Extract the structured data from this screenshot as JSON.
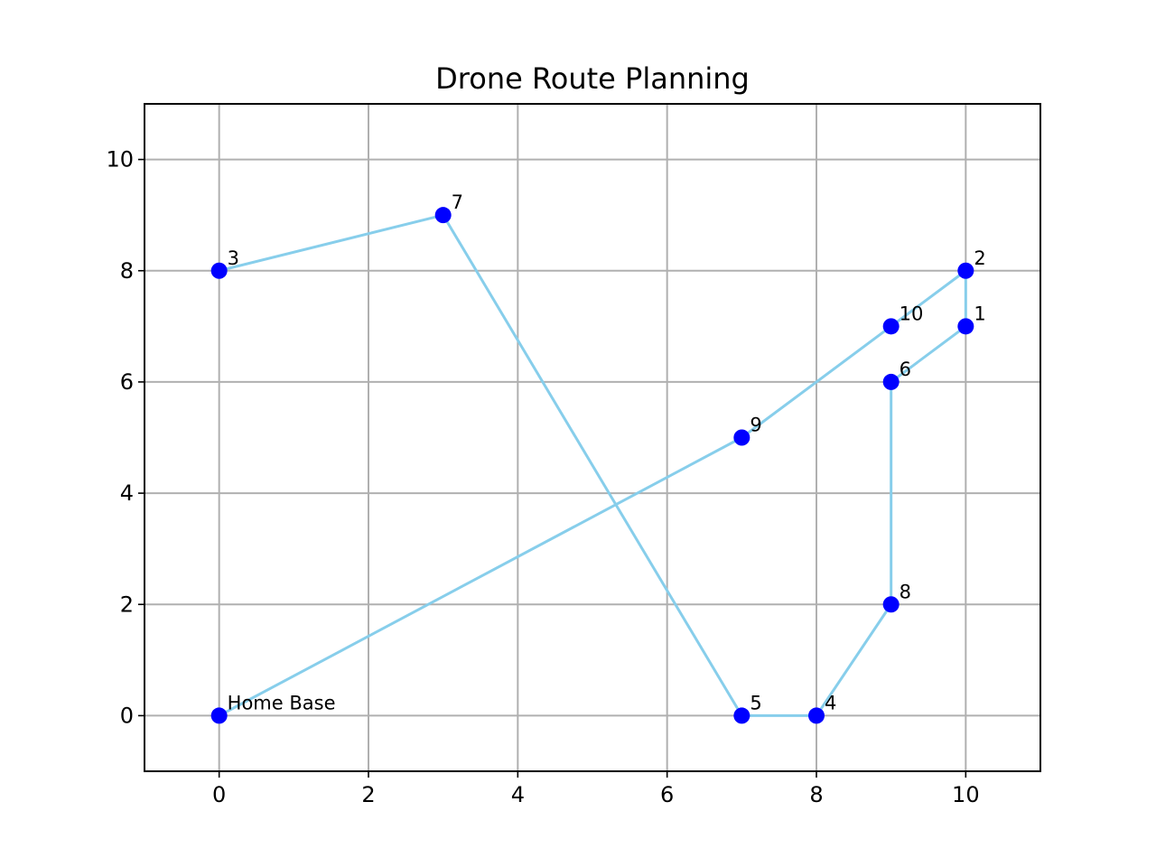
{
  "chart_data": {
    "type": "scatter",
    "title": "Drone Route Planning",
    "xlabel": "",
    "ylabel": "",
    "xlim": [
      -1,
      11
    ],
    "ylim": [
      -1,
      11
    ],
    "grid": true,
    "x_ticks": [
      0,
      2,
      4,
      6,
      8,
      10
    ],
    "y_ticks": [
      0,
      2,
      4,
      6,
      8,
      10
    ],
    "colors": {
      "route_line": "#87ceeb",
      "points": "#0000ff"
    },
    "points": [
      {
        "label": "Home Base",
        "x": 0,
        "y": 0
      },
      {
        "label": "1",
        "x": 10,
        "y": 7
      },
      {
        "label": "2",
        "x": 10,
        "y": 8
      },
      {
        "label": "3",
        "x": 0,
        "y": 8
      },
      {
        "label": "4",
        "x": 8,
        "y": 0
      },
      {
        "label": "5",
        "x": 7,
        "y": 0
      },
      {
        "label": "6",
        "x": 9,
        "y": 6
      },
      {
        "label": "7",
        "x": 3,
        "y": 9
      },
      {
        "label": "8",
        "x": 9,
        "y": 2
      },
      {
        "label": "9",
        "x": 7,
        "y": 5
      },
      {
        "label": "10",
        "x": 9,
        "y": 7
      }
    ],
    "route_order": [
      0,
      9,
      10,
      2,
      1,
      6,
      8,
      4,
      5,
      7,
      3
    ]
  }
}
